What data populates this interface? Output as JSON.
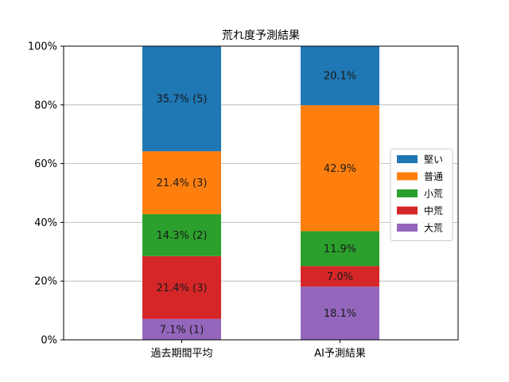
{
  "chart_data": {
    "type": "bar",
    "stacked": true,
    "title": "荒れ度予測結果",
    "xlabel": "",
    "ylabel": "",
    "ylim": [
      0,
      100
    ],
    "yticks": [
      "0%",
      "20%",
      "40%",
      "60%",
      "80%",
      "100%"
    ],
    "grid": "horizontal",
    "legend_position": "right",
    "categories": [
      "過去期間平均",
      "AI予測結果"
    ],
    "series": [
      {
        "name": "大荒",
        "color": "#9467bd",
        "values": [
          7.1,
          18.1
        ],
        "labels": [
          "7.1% (1)",
          "18.1%"
        ]
      },
      {
        "name": "中荒",
        "color": "#d62728",
        "values": [
          21.4,
          7.0
        ],
        "labels": [
          "21.4% (3)",
          "7.0%"
        ]
      },
      {
        "name": "小荒",
        "color": "#2ca02c",
        "values": [
          14.3,
          11.9
        ],
        "labels": [
          "14.3% (2)",
          "11.9%"
        ]
      },
      {
        "name": "普通",
        "color": "#ff7f0e",
        "values": [
          21.4,
          42.9
        ],
        "labels": [
          "21.4% (3)",
          "42.9%"
        ]
      },
      {
        "name": "堅い",
        "color": "#1f77b4",
        "values": [
          35.7,
          20.1
        ],
        "labels": [
          "35.7% (5)",
          "20.1%"
        ]
      }
    ],
    "legend_order": [
      "堅い",
      "普通",
      "小荒",
      "中荒",
      "大荒"
    ]
  }
}
